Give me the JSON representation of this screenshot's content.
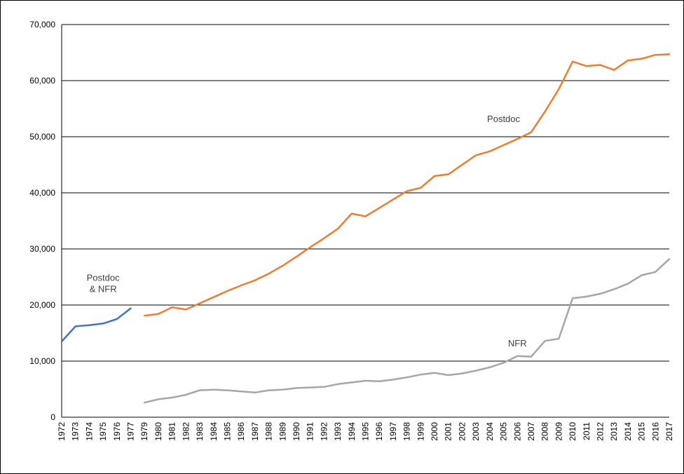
{
  "frame": {
    "background_color": "#ffffff",
    "border_color": "#000000"
  },
  "chart_data": {
    "type": "line",
    "title": "",
    "xlabel": "",
    "ylabel": "",
    "ylim": [
      0,
      70000
    ],
    "grid": "horizontal",
    "legend": "none (inline text annotations)",
    "axis_color": "#000000",
    "text_color": "#000000",
    "annotation_color": "#404040",
    "yticks": [
      0,
      10000,
      20000,
      30000,
      40000,
      50000,
      60000,
      70000
    ],
    "ytick_labels": [
      "0",
      "10,000",
      "20,000",
      "30,000",
      "40,000",
      "50,000",
      "60,000",
      "70,000"
    ],
    "categories": [
      "1972",
      "1973",
      "1974",
      "1975",
      "1976",
      "1977",
      "1979",
      "1980",
      "1981",
      "1982",
      "1983",
      "1984",
      "1985",
      "1986",
      "1987",
      "1988",
      "1989",
      "1990",
      "1991",
      "1992",
      "1993",
      "1994",
      "1995",
      "1996",
      "1997",
      "1998",
      "1999",
      "2000",
      "2001",
      "2002",
      "2003",
      "2004",
      "2005",
      "2006",
      "2007",
      "2008",
      "2009",
      "2010",
      "2011",
      "2012",
      "2013",
      "2014",
      "2015",
      "2016",
      "2017"
    ],
    "series": [
      {
        "name": "Postdoc & NFR",
        "color": "#4472c4",
        "years": [
          "1972",
          "1973",
          "1974",
          "1975",
          "1976",
          "1977"
        ],
        "values": [
          13500,
          16200,
          16400,
          16700,
          17500,
          19400
        ]
      },
      {
        "name": "Postdoc",
        "color": "#ed7d31",
        "years": [
          "1979",
          "1980",
          "1981",
          "1982",
          "1983",
          "1984",
          "1985",
          "1986",
          "1987",
          "1988",
          "1989",
          "1990",
          "1991",
          "1992",
          "1993",
          "1994",
          "1995",
          "1996",
          "1997",
          "1998",
          "1999",
          "2000",
          "2001",
          "2002",
          "2003",
          "2004",
          "2005",
          "2006",
          "2007",
          "2008",
          "2009",
          "2010",
          "2011",
          "2012",
          "2013",
          "2014",
          "2015",
          "2016",
          "2017"
        ],
        "values": [
          18100,
          18400,
          19600,
          19200,
          20300,
          21400,
          22500,
          23500,
          24400,
          25600,
          27000,
          28600,
          30300,
          31900,
          33600,
          36300,
          35800,
          37300,
          38800,
          40300,
          40900,
          43000,
          43300,
          45000,
          46700,
          47400,
          48500,
          49600,
          50800,
          54500,
          58500,
          63400,
          62600,
          62800,
          61900,
          63600,
          63900,
          64600,
          64700
        ]
      },
      {
        "name": "NFR",
        "color": "#a6a6a6",
        "years": [
          "1979",
          "1980",
          "1981",
          "1982",
          "1983",
          "1984",
          "1985",
          "1986",
          "1987",
          "1988",
          "1989",
          "1990",
          "1991",
          "1992",
          "1993",
          "1994",
          "1995",
          "1996",
          "1997",
          "1998",
          "1999",
          "2000",
          "2001",
          "2002",
          "2003",
          "2004",
          "2005",
          "2006",
          "2007",
          "2008",
          "2009",
          "2010",
          "2011",
          "2012",
          "2013",
          "2014",
          "2015",
          "2016",
          "2017"
        ],
        "values": [
          2600,
          3200,
          3500,
          4000,
          4800,
          4900,
          4800,
          4600,
          4400,
          4800,
          4900,
          5200,
          5300,
          5400,
          5900,
          6200,
          6500,
          6400,
          6700,
          7100,
          7600,
          7900,
          7500,
          7800,
          8300,
          8900,
          9700,
          10900,
          10800,
          13600,
          14000,
          21200,
          21500,
          22000,
          22800,
          23800,
          25300,
          25900,
          28200
        ]
      }
    ],
    "annotations": [
      {
        "text": "Postdoc",
        "year": "2005",
        "value": 52600
      },
      {
        "text": "Postdoc\n& NFR",
        "year": "1975",
        "value": 24300
      },
      {
        "text": "NFR",
        "year": "2006",
        "value": 12600
      }
    ]
  }
}
